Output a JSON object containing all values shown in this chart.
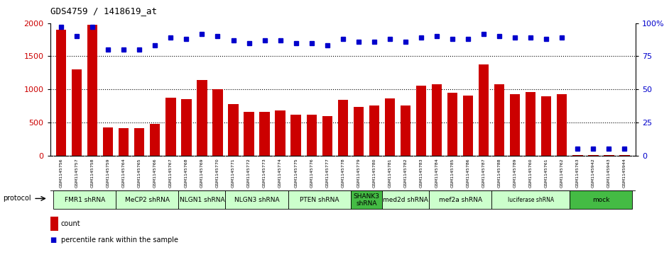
{
  "title": "GDS4759 / 1418619_at",
  "samples": [
    "GSM1145756",
    "GSM1145757",
    "GSM1145758",
    "GSM1145759",
    "GSM1145764",
    "GSM1145765",
    "GSM1145766",
    "GSM1145767",
    "GSM1145768",
    "GSM1145769",
    "GSM1145770",
    "GSM1145771",
    "GSM1145772",
    "GSM1145773",
    "GSM1145774",
    "GSM1145775",
    "GSM1145776",
    "GSM1145777",
    "GSM1145778",
    "GSM1145779",
    "GSM1145780",
    "GSM1145781",
    "GSM1145782",
    "GSM1145783",
    "GSM1145784",
    "GSM1145785",
    "GSM1145786",
    "GSM1145787",
    "GSM1145788",
    "GSM1145789",
    "GSM1145760",
    "GSM1145761",
    "GSM1145762",
    "GSM1145763",
    "GSM1145942",
    "GSM1145943",
    "GSM1145944"
  ],
  "counts": [
    1900,
    1300,
    1980,
    420,
    410,
    415,
    480,
    870,
    850,
    1140,
    1000,
    780,
    660,
    660,
    680,
    620,
    620,
    590,
    840,
    730,
    760,
    860,
    760,
    1050,
    1080,
    950,
    910,
    1380,
    1080,
    930,
    960,
    890,
    930,
    10,
    10,
    10,
    10
  ],
  "percentiles": [
    97,
    90,
    97,
    80,
    80,
    80,
    83,
    89,
    88,
    92,
    90,
    87,
    85,
    87,
    87,
    85,
    85,
    83,
    88,
    86,
    86,
    88,
    86,
    89,
    90,
    88,
    88,
    92,
    90,
    89,
    89,
    88,
    89,
    5,
    5,
    5,
    5
  ],
  "bar_color": "#cc0000",
  "dot_color": "#0000cc",
  "ylim_left": [
    0,
    2000
  ],
  "ylim_right": [
    0,
    100
  ],
  "yticks_left": [
    0,
    500,
    1000,
    1500,
    2000
  ],
  "yticks_right": [
    0,
    25,
    50,
    75,
    100
  ],
  "ytick_labels_right": [
    "0",
    "25",
    "50",
    "75",
    "100%"
  ],
  "groups": [
    {
      "label": "FMR1 shRNA",
      "start": 0,
      "end": 4,
      "color": "#ccffcc"
    },
    {
      "label": "MeCP2 shRNA",
      "start": 4,
      "end": 8,
      "color": "#ccffcc"
    },
    {
      "label": "NLGN1 shRNA",
      "start": 8,
      "end": 11,
      "color": "#ccffcc"
    },
    {
      "label": "NLGN3 shRNA",
      "start": 11,
      "end": 15,
      "color": "#ccffcc"
    },
    {
      "label": "PTEN shRNA",
      "start": 15,
      "end": 19,
      "color": "#ccffcc"
    },
    {
      "label": "SHANK3\nshRNA",
      "start": 19,
      "end": 21,
      "color": "#44bb44"
    },
    {
      "label": "med2d shRNA",
      "start": 21,
      "end": 24,
      "color": "#ccffcc"
    },
    {
      "label": "mef2a shRNA",
      "start": 24,
      "end": 28,
      "color": "#ccffcc"
    },
    {
      "label": "luciferase shRNA",
      "start": 28,
      "end": 33,
      "color": "#ccffcc"
    },
    {
      "label": "mock",
      "start": 33,
      "end": 37,
      "color": "#44bb44"
    }
  ],
  "legend_count_color": "#cc0000",
  "legend_dot_color": "#0000cc",
  "sample_bg_color": "#d4d4d4",
  "protocol_label": "protocol"
}
